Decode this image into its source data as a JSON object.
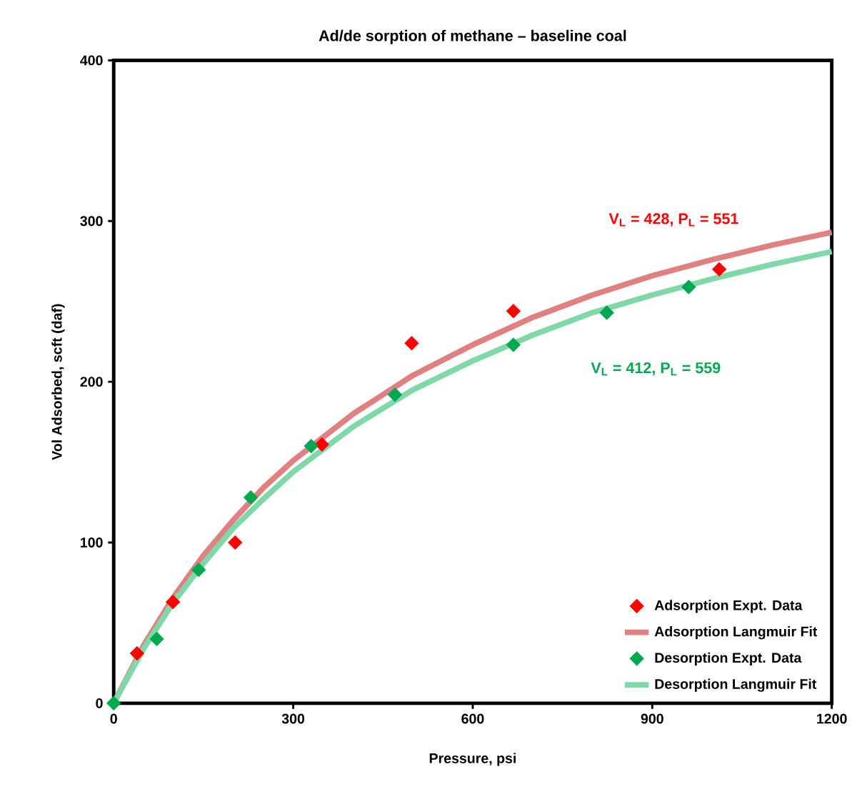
{
  "chart_data": {
    "type": "scatter",
    "title": "Ad/de sorption of methane – baseline coal",
    "xlabel": "Pressure, psi",
    "ylabel": "Vol Adsorbed, scft (daf)",
    "xlim": [
      0,
      1200
    ],
    "ylim": [
      0,
      400
    ],
    "xticks": [
      0,
      300,
      600,
      900,
      1200
    ],
    "yticks": [
      0,
      100,
      200,
      300,
      400
    ],
    "grid": false,
    "legend": "bottom right",
    "series": [
      {
        "name": "Adsorption Expt. Data",
        "type": "scatter",
        "marker": "diamond",
        "color": "#ff0000",
        "x": [
          39,
          99,
          203,
          348,
          498,
          668,
          1012
        ],
        "values": [
          31,
          63,
          100,
          161,
          224,
          244,
          270
        ]
      },
      {
        "name": "Adsorption Langmuir Fit",
        "type": "line",
        "marker": "none",
        "color": "#e08080",
        "x": [
          0,
          50,
          100,
          150,
          200,
          250,
          300,
          400,
          500,
          600,
          700,
          800,
          900,
          1000,
          1100,
          1200
        ],
        "values": [
          0,
          36,
          66,
          92,
          114,
          134,
          151,
          180,
          204,
          223,
          240,
          254,
          266,
          276,
          285,
          293
        ]
      },
      {
        "name": "Desorption Expt. Data",
        "type": "scatter",
        "marker": "diamond",
        "color": "#00a84f",
        "x": [
          0,
          72,
          142,
          229,
          330,
          470,
          668,
          824,
          961
        ],
        "values": [
          0,
          40,
          83,
          128,
          160,
          192,
          223,
          243,
          259
        ]
      },
      {
        "name": "Desorption Langmuir Fit",
        "type": "line",
        "marker": "none",
        "color": "#80d8a8",
        "x": [
          0,
          50,
          100,
          150,
          200,
          250,
          300,
          400,
          500,
          600,
          700,
          800,
          900,
          1000,
          1100,
          1200
        ],
        "values": [
          0,
          34,
          63,
          87,
          109,
          127,
          144,
          172,
          195,
          213,
          229,
          243,
          254,
          264,
          273,
          281
        ]
      }
    ],
    "annotations": [
      "V$_{L}$ = 428, P$_{L}$ = 551",
      "V$_{L}$ = 412, P$_{L}$ = 559"
    ]
  }
}
